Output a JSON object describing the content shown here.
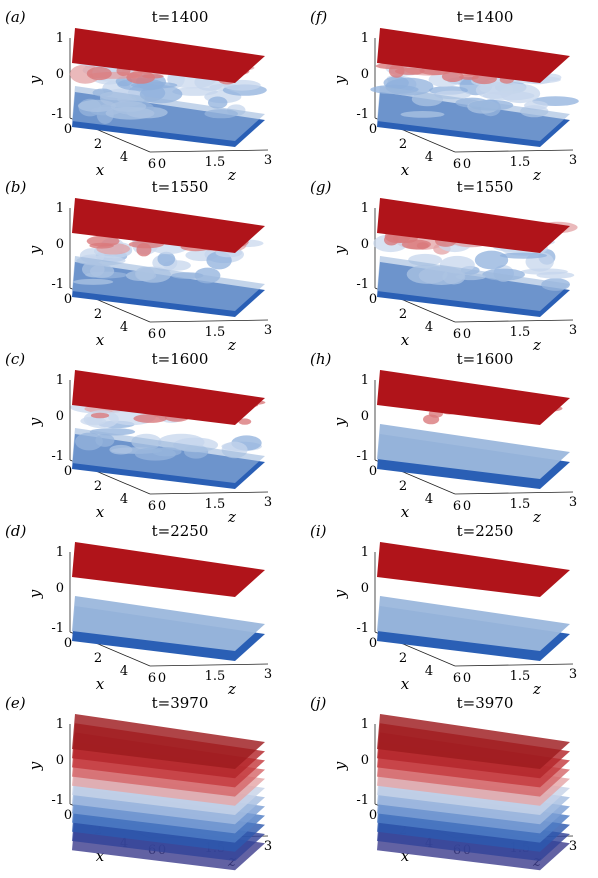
{
  "panels": [
    {
      "label": "(a)",
      "title": "t=1400",
      "mode": "turb-strong"
    },
    {
      "label": "(b)",
      "title": "t=1550",
      "mode": "turb-mid"
    },
    {
      "label": "(c)",
      "title": "t=1600",
      "mode": "turb-weak"
    },
    {
      "label": "(d)",
      "title": "t=2250",
      "mode": "two"
    },
    {
      "label": "(e)",
      "title": "t=3970",
      "mode": "stack"
    },
    {
      "label": "(f)",
      "title": "t=1400",
      "mode": "turb-strong-b"
    },
    {
      "label": "(g)",
      "title": "t=1550",
      "mode": "turb-mid-b"
    },
    {
      "label": "(h)",
      "title": "t=1600",
      "mode": "two-wavy"
    },
    {
      "label": "(i)",
      "title": "t=2250",
      "mode": "two"
    },
    {
      "label": "(j)",
      "title": "t=3970",
      "mode": "stack"
    }
  ],
  "axes": {
    "y_label": "y",
    "x_label": "x",
    "z_label": "z",
    "y_ticks": [
      "1",
      "0",
      "-1"
    ],
    "x_ticks": [
      "0",
      "2",
      "4",
      "6"
    ],
    "z_ticks": [
      "0",
      "1.5",
      "3"
    ]
  },
  "colors": {
    "top_sheet": "#b0141a",
    "top_sheet_light": "#d9797c",
    "bottom_sheet": "#9bb7dc",
    "bottom_floor": "#2a5fb5",
    "stack": [
      "#9e1b1f",
      "#b3262b",
      "#c43a3e",
      "#d6686a",
      "#e5a6a7",
      "#c7d3e8",
      "#a5bde0",
      "#7b9fd4",
      "#4e7cc4",
      "#2d59ae",
      "#33449a",
      "#3f3f8f"
    ]
  }
}
